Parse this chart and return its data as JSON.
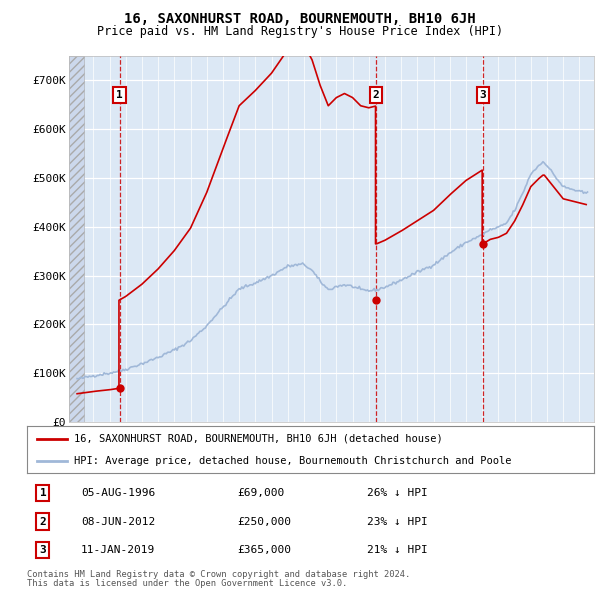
{
  "title": "16, SAXONHURST ROAD, BOURNEMOUTH, BH10 6JH",
  "subtitle": "Price paid vs. HM Land Registry's House Price Index (HPI)",
  "sales": [
    {
      "date_num": 1996.62,
      "price": 69000,
      "label": "1"
    },
    {
      "date_num": 2012.44,
      "price": 250000,
      "label": "2"
    },
    {
      "date_num": 2019.04,
      "price": 365000,
      "label": "3"
    }
  ],
  "sale_dates_str": [
    "05-AUG-1996",
    "08-JUN-2012",
    "11-JAN-2019"
  ],
  "sale_prices_str": [
    "£69,000",
    "£250,000",
    "£365,000"
  ],
  "sale_pct_str": [
    "26% ↓ HPI",
    "23% ↓ HPI",
    "21% ↓ HPI"
  ],
  "hpi_color": "#a0b8d8",
  "sale_color": "#cc0000",
  "legend_sale_label": "16, SAXONHURST ROAD, BOURNEMOUTH, BH10 6JH (detached house)",
  "legend_hpi_label": "HPI: Average price, detached house, Bournemouth Christchurch and Poole",
  "footnote1": "Contains HM Land Registry data © Crown copyright and database right 2024.",
  "footnote2": "This data is licensed under the Open Government Licence v3.0.",
  "ylim": [
    0,
    750000
  ],
  "yticks": [
    0,
    100000,
    200000,
    300000,
    400000,
    500000,
    600000,
    700000
  ],
  "ytick_labels": [
    "£0",
    "£100K",
    "£200K",
    "£300K",
    "£400K",
    "£500K",
    "£600K",
    "£700K"
  ],
  "xlim_start": 1993.5,
  "xlim_end": 2025.9,
  "hatch_end": 1994.42,
  "plot_bg_color": "#dce8f5"
}
